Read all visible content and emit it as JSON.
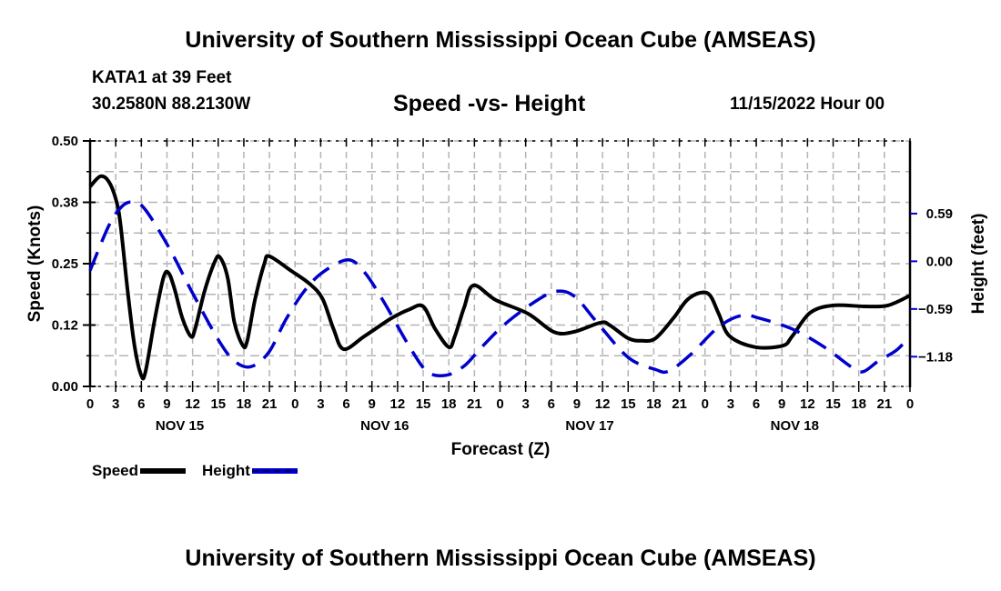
{
  "header": {
    "title_top": "University of Southern Mississippi Ocean Cube (AMSEAS)",
    "station": "KATA1 at 39 Feet",
    "coords": "30.2580N  88.2130W",
    "chart_title": "Speed -vs- Height",
    "datetime": "11/15/2022 Hour 00"
  },
  "footer": {
    "title_bottom": "University of Southern Mississippi Ocean Cube (AMSEAS)"
  },
  "legend": {
    "speed_label": "Speed",
    "height_label": "Height"
  },
  "colors": {
    "speed": "#000000",
    "height": "#0000cc",
    "grid": "#b4b4b4"
  },
  "chart_data": {
    "type": "line",
    "title": "Speed -vs- Height",
    "xlabel": "Forecast (Z)",
    "ylabel": "Speed (Knots)",
    "y2label": "Height (feet)",
    "xlim": [
      0,
      96
    ],
    "ylim": [
      0,
      0.5
    ],
    "y2lim": [
      -1.548,
      1.489
    ],
    "grid": true,
    "legend_position": "bottom-left",
    "x_tick_labels": [
      "0",
      "3",
      "6",
      "9",
      "12",
      "15",
      "18",
      "21",
      "0",
      "3",
      "6",
      "9",
      "12",
      "15",
      "18",
      "21",
      "0",
      "3",
      "6",
      "9",
      "12",
      "15",
      "18",
      "21",
      "0",
      "3",
      "6",
      "9",
      "12",
      "15",
      "18",
      "21",
      "0"
    ],
    "day_labels": [
      {
        "label": "NOV 15",
        "hour": 10.5
      },
      {
        "label": "NOV 16",
        "hour": 34.5
      },
      {
        "label": "NOV 17",
        "hour": 58.5
      },
      {
        "label": "NOV 18",
        "hour": 82.5
      }
    ],
    "y_ticks": [
      {
        "value": 0.0,
        "label": "0.00"
      },
      {
        "value": 0.125,
        "label": "0.12"
      },
      {
        "value": 0.25,
        "label": "0.25"
      },
      {
        "value": 0.375,
        "label": "0.38"
      },
      {
        "value": 0.5,
        "label": "0.50"
      }
    ],
    "y2_ticks": [
      {
        "value": 0.59,
        "label": "0.59"
      },
      {
        "value": 0.0,
        "label": "0.00"
      },
      {
        "value": -0.59,
        "label": "−0.59"
      },
      {
        "value": -1.18,
        "label": "−1.18"
      }
    ],
    "series": [
      {
        "name": "Speed",
        "axis": "left",
        "style": "solid",
        "x": [
          0,
          1.2,
          2.2,
          3.1,
          3.6,
          4.4,
          5.2,
          6.0,
          6.5,
          7.6,
          8.6,
          9.2,
          9.9,
          10.8,
          11.8,
          12.3,
          13.4,
          14.6,
          15.2,
          16.1,
          16.9,
          17.9,
          18.4,
          19.3,
          20.4,
          21.0,
          23.5,
          25.7,
          27.2,
          28.5,
          29.7,
          32.1,
          35.3,
          37.4,
          39.0,
          40.4,
          42.0,
          42.7,
          43.8,
          44.9,
          47.5,
          51.3,
          54.3,
          56.6,
          59.8,
          60.9,
          63.0,
          64.6,
          66.2,
          68.3,
          69.9,
          71.5,
          72.6,
          73.6,
          74.9,
          77.9,
          81.1,
          82.2,
          84.3,
          87.0,
          90.7,
          93.4,
          96.0
        ],
        "values": [
          0.407,
          0.428,
          0.417,
          0.376,
          0.324,
          0.194,
          0.083,
          0.022,
          0.031,
          0.139,
          0.222,
          0.231,
          0.198,
          0.139,
          0.102,
          0.117,
          0.194,
          0.254,
          0.263,
          0.222,
          0.13,
          0.083,
          0.093,
          0.176,
          0.25,
          0.265,
          0.236,
          0.209,
          0.179,
          0.117,
          0.076,
          0.102,
          0.139,
          0.157,
          0.163,
          0.117,
          0.08,
          0.102,
          0.161,
          0.206,
          0.176,
          0.148,
          0.111,
          0.111,
          0.13,
          0.124,
          0.098,
          0.093,
          0.098,
          0.139,
          0.176,
          0.191,
          0.185,
          0.148,
          0.102,
          0.08,
          0.083,
          0.102,
          0.15,
          0.165,
          0.163,
          0.165,
          0.185
        ]
      },
      {
        "name": "Height",
        "axis": "right",
        "style": "dashed",
        "x": [
          0,
          2.2,
          3.8,
          5.2,
          6.5,
          9.2,
          11.8,
          15.0,
          16.9,
          18.8,
          20.9,
          23.0,
          25.2,
          27.3,
          30.2,
          32.1,
          34.3,
          37.4,
          39.5,
          41.7,
          43.8,
          45.9,
          48.6,
          52.3,
          54.7,
          56.8,
          59.3,
          63.0,
          66.2,
          67.8,
          70.4,
          73.6,
          76.3,
          78.4,
          82.2,
          85.9,
          89.1,
          90.5,
          92.3,
          94.4,
          96.0
        ],
        "values": [
          -0.115,
          0.441,
          0.687,
          0.731,
          0.634,
          0.176,
          -0.352,
          -0.969,
          -1.233,
          -1.304,
          -1.128,
          -0.705,
          -0.352,
          -0.132,
          0.018,
          -0.132,
          -0.485,
          -1.057,
          -1.366,
          -1.41,
          -1.295,
          -1.057,
          -0.775,
          -0.485,
          -0.37,
          -0.441,
          -0.749,
          -1.189,
          -1.339,
          -1.357,
          -1.145,
          -0.811,
          -0.67,
          -0.705,
          -0.837,
          -1.057,
          -1.304,
          -1.366,
          -1.233,
          -1.101,
          -0.925
        ]
      }
    ]
  }
}
